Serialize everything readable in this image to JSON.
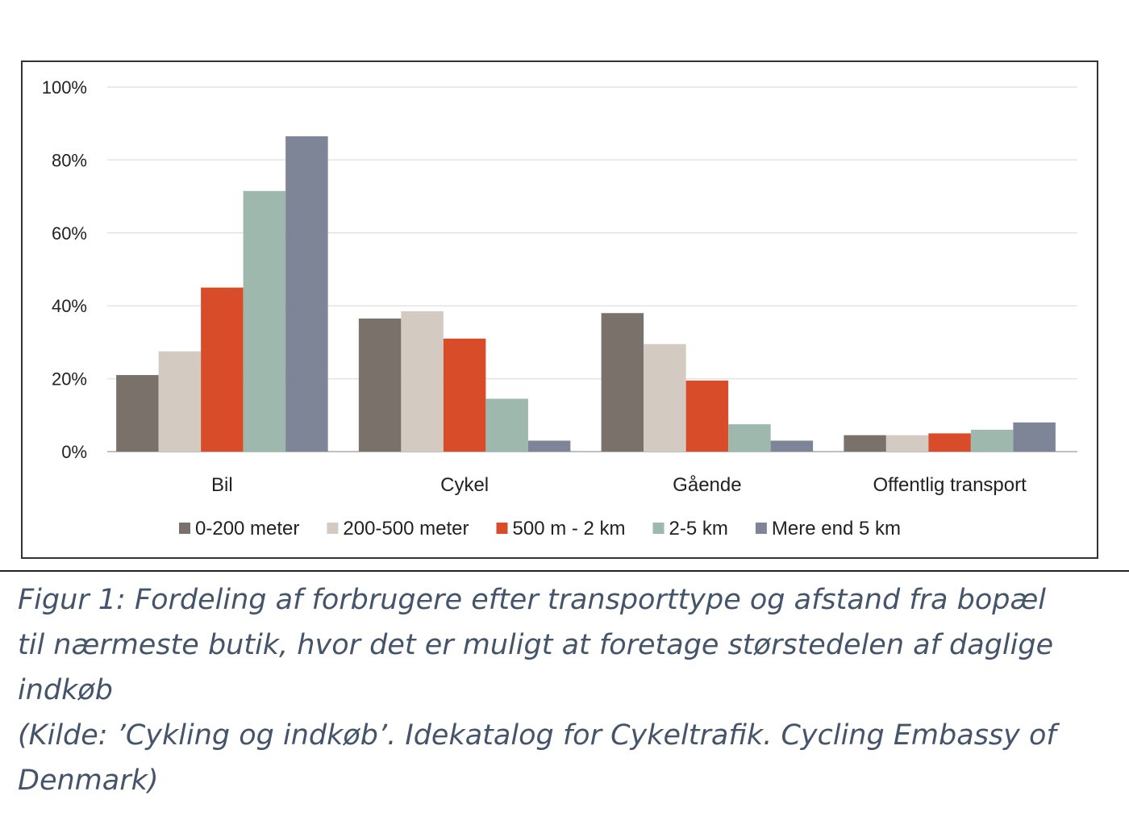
{
  "chart_data": {
    "type": "bar",
    "categories": [
      "Bil",
      "Cykel",
      "Gående",
      "Offentlig transport"
    ],
    "series": [
      {
        "name": "0-200 meter",
        "color": "#7a726a",
        "values": [
          21,
          36.5,
          38,
          4.5
        ]
      },
      {
        "name": "200-500 meter",
        "color": "#d3cbc1",
        "values": [
          27.5,
          38.5,
          29.5,
          4.5
        ]
      },
      {
        "name": "500 m - 2 km",
        "color": "#d94c2a",
        "values": [
          45,
          31,
          19.5,
          5
        ]
      },
      {
        "name": "2-5 km",
        "color": "#9fb8ad",
        "values": [
          71.5,
          14.5,
          7.5,
          6
        ]
      },
      {
        "name": "Mere end 5 km",
        "color": "#7d8596",
        "values": [
          86.5,
          3,
          3,
          8
        ]
      }
    ],
    "ylim": [
      0,
      100
    ],
    "yticks": [
      "0%",
      "20%",
      "40%",
      "60%",
      "80%",
      "100%"
    ],
    "grid": true,
    "legend_position": "bottom"
  },
  "caption": {
    "lines": [
      "Figur 1: Fordeling af forbrugere efter transporttype og afstand fra bopæl",
      "til nærmeste butik, hvor det er muligt at foretage størstedelen af daglige",
      "indkøb",
      "(Kilde: ’Cykling og indkøb’. Idekatalog for Cykeltrafik. Cycling Embassy of",
      "Denmark)"
    ]
  }
}
